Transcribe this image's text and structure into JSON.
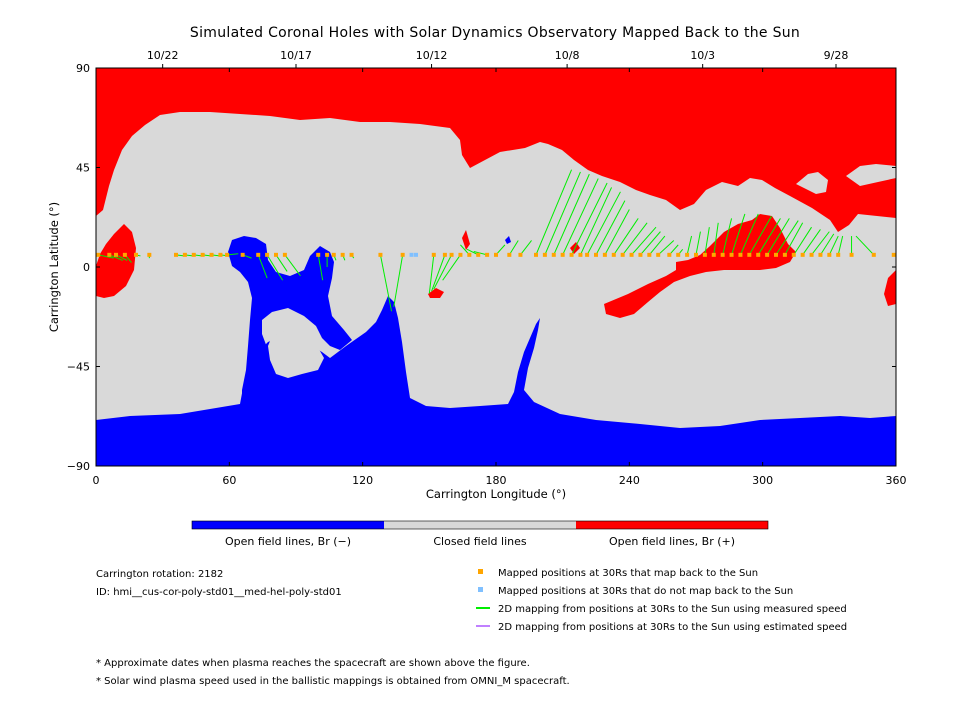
{
  "chart_data": {
    "type": "map",
    "title": "Simulated Coronal Holes with Solar Dynamics Observatory Mapped Back to the Sun",
    "xlabel": "Carrington Longitude (°)",
    "ylabel": "Carrington Latitude (°)",
    "xlim": [
      0,
      360
    ],
    "ylim": [
      -90,
      90
    ],
    "x_ticks": [
      0,
      60,
      120,
      180,
      240,
      300,
      360
    ],
    "y_ticks": [
      -90,
      -45,
      0,
      45,
      90
    ],
    "y_tick_labels": [
      "−90",
      "−45",
      "0",
      "45",
      "90"
    ],
    "date_ticks": [
      {
        "lon": 30,
        "label": "10/22"
      },
      {
        "lon": 90,
        "label": "10/17"
      },
      {
        "lon": 151,
        "label": "10/12"
      },
      {
        "lon": 212,
        "label": "10/8"
      },
      {
        "lon": 273,
        "label": "10/3"
      },
      {
        "lon": 333,
        "label": "9/28"
      }
    ],
    "colors": {
      "open_negative": "#0000ff",
      "closed": "#d9d9d9",
      "open_positive": "#ff0000",
      "mapped_yes": "#ffa500",
      "mapped_no": "#80c0ff",
      "measured_line": "#00ee00",
      "estimated_line": "#c080ff"
    },
    "colorbar": [
      {
        "label": "Open field lines, Br (−)",
        "color": "#0000ff"
      },
      {
        "label": "Closed field lines",
        "color": "#d9d9d9"
      },
      {
        "label": "Open field lines, Br (+)",
        "color": "#ff0000"
      }
    ],
    "mapping_points": {
      "map_back": [
        {
          "sc": [
            1,
            5.5
          ],
          "sun": [
            8,
            4
          ]
        },
        {
          "sc": [
            6,
            5.5
          ],
          "sun": [
            12,
            3
          ]
        },
        {
          "sc": [
            9,
            5.5
          ],
          "sun": [
            14,
            3
          ]
        },
        {
          "sc": [
            13,
            5.5
          ],
          "sun": [
            16,
            2
          ]
        },
        {
          "sc": [
            18,
            5.5
          ],
          "sun": [
            20,
            5
          ]
        },
        {
          "sc": [
            24,
            5.5
          ],
          "sun": [
            24,
            4
          ]
        },
        {
          "sc": [
            36,
            5.5
          ],
          "sun": [
            40,
            5
          ]
        },
        {
          "sc": [
            40,
            5.5
          ],
          "sun": [
            44,
            5
          ]
        },
        {
          "sc": [
            44,
            5.5
          ],
          "sun": [
            48,
            5
          ]
        },
        {
          "sc": [
            48,
            5.5
          ],
          "sun": [
            52,
            5
          ]
        },
        {
          "sc": [
            52,
            5.5
          ],
          "sun": [
            56,
            5
          ]
        },
        {
          "sc": [
            56,
            5.5
          ],
          "sun": [
            60,
            5
          ]
        },
        {
          "sc": [
            59,
            5.5
          ],
          "sun": [
            64,
            6
          ]
        },
        {
          "sc": [
            66,
            5.5
          ],
          "sun": [
            70,
            4
          ]
        },
        {
          "sc": [
            73,
            5.5
          ],
          "sun": [
            77,
            -5
          ]
        },
        {
          "sc": [
            77,
            5.5
          ],
          "sun": [
            84,
            -6
          ]
        },
        {
          "sc": [
            81,
            5.5
          ],
          "sun": [
            86,
            -2
          ]
        },
        {
          "sc": [
            85,
            5.5
          ],
          "sun": [
            92,
            -4
          ]
        },
        {
          "sc": [
            100,
            5.5
          ],
          "sun": [
            102,
            -6
          ]
        },
        {
          "sc": [
            104,
            5.5
          ],
          "sun": [
            104,
            0
          ]
        },
        {
          "sc": [
            107,
            5.5
          ],
          "sun": [
            108,
            3
          ]
        },
        {
          "sc": [
            111,
            5.5
          ],
          "sun": [
            112,
            3
          ]
        },
        {
          "sc": [
            115,
            5.5
          ],
          "sun": [
            116,
            4
          ]
        },
        {
          "sc": [
            128,
            5.5
          ],
          "sun": [
            133,
            -20
          ]
        },
        {
          "sc": [
            138,
            5.5
          ],
          "sun": [
            134,
            -18
          ]
        },
        {
          "sc": [
            152,
            5.5
          ],
          "sun": [
            150,
            -12
          ]
        },
        {
          "sc": [
            157,
            5.5
          ],
          "sun": [
            151,
            -11
          ]
        },
        {
          "sc": [
            160,
            5.5
          ],
          "sun": [
            152,
            -10
          ]
        },
        {
          "sc": [
            164,
            5.5
          ],
          "sun": [
            156,
            -6
          ]
        },
        {
          "sc": [
            168,
            5.5
          ],
          "sun": [
            164,
            10
          ]
        },
        {
          "sc": [
            172,
            5.5
          ],
          "sun": [
            167,
            8
          ]
        },
        {
          "sc": [
            176,
            5.5
          ],
          "sun": [
            170,
            7
          ]
        },
        {
          "sc": [
            180,
            5.5
          ],
          "sun": [
            184,
            10
          ]
        },
        {
          "sc": [
            186,
            5.5
          ],
          "sun": [
            190,
            12
          ]
        },
        {
          "sc": [
            191,
            5.5
          ],
          "sun": [
            196,
            12
          ]
        },
        {
          "sc": [
            198,
            5.5
          ],
          "sun": [
            214,
            44
          ]
        },
        {
          "sc": [
            202,
            5.5
          ],
          "sun": [
            218,
            43
          ]
        },
        {
          "sc": [
            206,
            5.5
          ],
          "sun": [
            222,
            42
          ]
        },
        {
          "sc": [
            210,
            5.5
          ],
          "sun": [
            226,
            40
          ]
        },
        {
          "sc": [
            214,
            5.5
          ],
          "sun": [
            230,
            38
          ]
        },
        {
          "sc": [
            218,
            5.5
          ],
          "sun": [
            232,
            36
          ]
        },
        {
          "sc": [
            221,
            5.5
          ],
          "sun": [
            236,
            34
          ]
        },
        {
          "sc": [
            225,
            5.5
          ],
          "sun": [
            238,
            30
          ]
        },
        {
          "sc": [
            229,
            5.5
          ],
          "sun": [
            240,
            26
          ]
        },
        {
          "sc": [
            233,
            5.5
          ],
          "sun": [
            244,
            22
          ]
        },
        {
          "sc": [
            237,
            5.5
          ],
          "sun": [
            248,
            20
          ]
        },
        {
          "sc": [
            241,
            5.5
          ],
          "sun": [
            252,
            18
          ]
        },
        {
          "sc": [
            245,
            5.5
          ],
          "sun": [
            254,
            16
          ]
        },
        {
          "sc": [
            249,
            5.5
          ],
          "sun": [
            256,
            14
          ]
        },
        {
          "sc": [
            253,
            5.5
          ],
          "sun": [
            260,
            12
          ]
        },
        {
          "sc": [
            258,
            5.5
          ],
          "sun": [
            262,
            10
          ]
        },
        {
          "sc": [
            262,
            5.5
          ],
          "sun": [
            264,
            8
          ]
        },
        {
          "sc": [
            266,
            5.5
          ],
          "sun": [
            268,
            14
          ]
        },
        {
          "sc": [
            270,
            5.5
          ],
          "sun": [
            272,
            16
          ]
        },
        {
          "sc": [
            274,
            5.5
          ],
          "sun": [
            276,
            18
          ]
        },
        {
          "sc": [
            278,
            5.5
          ],
          "sun": [
            280,
            20
          ]
        },
        {
          "sc": [
            282,
            5.5
          ],
          "sun": [
            286,
            22
          ]
        },
        {
          "sc": [
            286,
            5.5
          ],
          "sun": [
            292,
            24
          ]
        },
        {
          "sc": [
            290,
            5.5
          ],
          "sun": [
            298,
            24
          ]
        },
        {
          "sc": [
            294,
            5.5
          ],
          "sun": [
            304,
            23
          ]
        },
        {
          "sc": [
            298,
            5.5
          ],
          "sun": [
            308,
            22
          ]
        },
        {
          "sc": [
            302,
            5.5
          ],
          "sun": [
            312,
            22
          ]
        },
        {
          "sc": [
            306,
            5.5
          ],
          "sun": [
            316,
            21
          ]
        },
        {
          "sc": [
            310,
            5.5
          ],
          "sun": [
            318,
            20
          ]
        },
        {
          "sc": [
            314,
            5.5
          ],
          "sun": [
            322,
            18
          ]
        },
        {
          "sc": [
            318,
            5.5
          ],
          "sun": [
            326,
            17
          ]
        },
        {
          "sc": [
            322,
            5.5
          ],
          "sun": [
            330,
            16
          ]
        },
        {
          "sc": [
            326,
            5.5
          ],
          "sun": [
            332,
            15
          ]
        },
        {
          "sc": [
            330,
            5.5
          ],
          "sun": [
            334,
            14
          ]
        },
        {
          "sc": [
            334,
            5.5
          ],
          "sun": [
            336,
            14
          ]
        },
        {
          "sc": [
            340,
            5.5
          ],
          "sun": [
            340,
            14
          ]
        },
        {
          "sc": [
            350,
            5.5
          ],
          "sun": [
            342,
            14
          ]
        },
        {
          "sc": [
            359,
            5.5
          ],
          "sun": [
            359,
            5.5
          ]
        }
      ],
      "no_map_back": [
        {
          "sc": [
            142,
            5.5
          ]
        },
        {
          "sc": [
            144,
            5.5
          ]
        }
      ]
    },
    "legend": [
      {
        "marker": "square",
        "color": "#ffa500",
        "label": "Mapped positions at 30Rs that map back to the Sun"
      },
      {
        "marker": "square",
        "color": "#80c0ff",
        "label": "Mapped positions at 30Rs that do not map back to the Sun"
      },
      {
        "marker": "line",
        "color": "#00ee00",
        "label": "2D mapping from positions at 30Rs to the Sun using measured speed"
      },
      {
        "marker": "line",
        "color": "#c080ff",
        "label": "2D mapping from positions at 30Rs to the Sun using estimated speed"
      }
    ]
  },
  "info": {
    "rotation": "Carrington rotation: 2182",
    "id": "ID: hmi__cus-cor-poly-std01__med-hel-poly-std01"
  },
  "notes": [
    "* Approximate dates when plasma reaches the spacecraft are shown above the figure.",
    "* Solar wind plasma speed used in the ballistic mappings is obtained from OMNI_M spacecraft."
  ]
}
